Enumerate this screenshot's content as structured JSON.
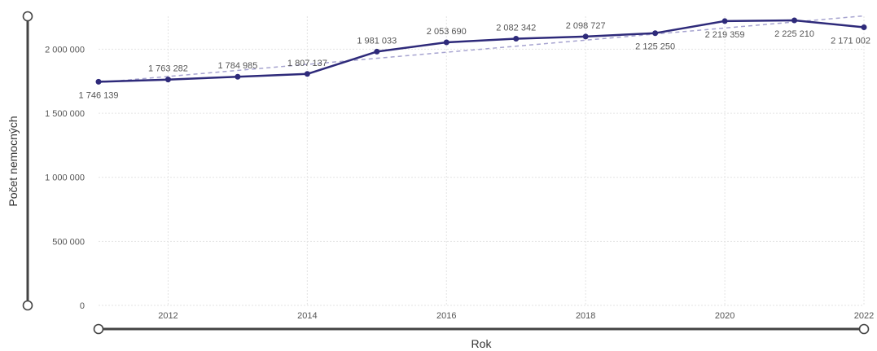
{
  "chart_data": {
    "type": "line",
    "title": "",
    "xlabel": "Rok",
    "ylabel": "Počet nemocných",
    "x": [
      2011,
      2012,
      2013,
      2014,
      2015,
      2016,
      2017,
      2018,
      2019,
      2020,
      2021,
      2022
    ],
    "series": [
      {
        "values": [
          1746139,
          1763282,
          1784985,
          1807137,
          1981033,
          2053690,
          2082342,
          2098727,
          2125250,
          2219359,
          2225210,
          2171002
        ],
        "labels": [
          "1 746 139",
          "1 763 282",
          "1 784 985",
          "1 807 137",
          "1 981 033",
          "2 053 690",
          "2 082 342",
          "2 098 727",
          "2 125 250",
          "2 219 359",
          "2 225 210",
          "2 171 002"
        ],
        "color": "#2e2a7a"
      }
    ],
    "trendline": {
      "style": "dashed",
      "color": "#a7a4d0",
      "from": [
        2011,
        1740000
      ],
      "to": [
        2022,
        2260000
      ]
    },
    "xlim": [
      2011,
      2022
    ],
    "ylim": [
      0,
      2200000
    ],
    "x_ticks": [
      2012,
      2014,
      2016,
      2018,
      2020,
      2022
    ],
    "x_tick_labels": [
      "2012",
      "2014",
      "2016",
      "2018",
      "2020",
      "2022"
    ],
    "y_ticks": [
      0,
      500000,
      1000000,
      1500000,
      2000000
    ],
    "y_tick_labels": [
      "0",
      "500 000",
      "1 000 000",
      "1 500 000",
      "2 000 000"
    ],
    "grid": true,
    "legend": "none",
    "range_sliders": {
      "x_axis": true,
      "y_axis": true
    }
  }
}
